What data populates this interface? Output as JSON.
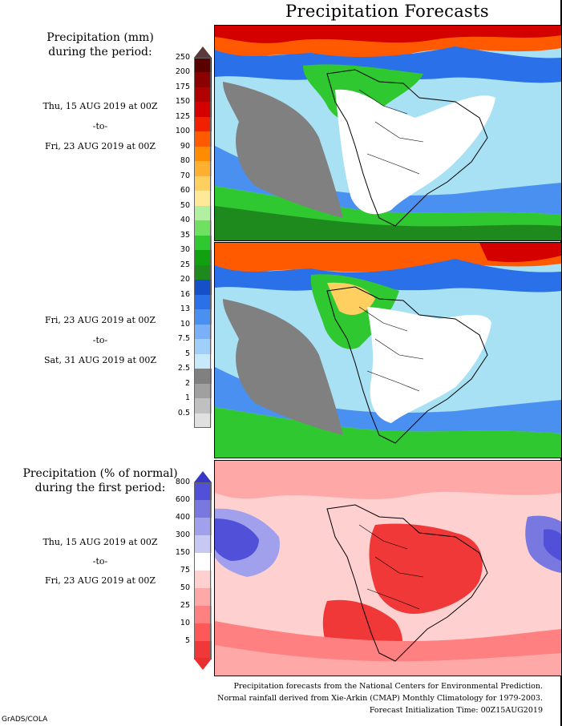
{
  "title": "Precipitation Forecasts",
  "panel1": {
    "heading_line1": "Precipitation (mm)",
    "heading_line2": "during the period:",
    "start": "Thu, 15 AUG 2019 at 00Z",
    "sep": "-to-",
    "end": "Fri, 23 AUG 2019 at 00Z"
  },
  "panel2": {
    "start": "Fri, 23 AUG 2019 at 00Z",
    "sep": "-to-",
    "end": "Sat, 31 AUG 2019 at 00Z"
  },
  "panel3": {
    "heading_line1": "Precipitation (% of normal)",
    "heading_line2": "during the first period:",
    "start": "Thu, 15 AUG 2019 at 00Z",
    "sep": "-to-",
    "end": "Fri, 23 AUG 2019 at 00Z"
  },
  "legend_mm": {
    "labels": [
      "250",
      "200",
      "175",
      "150",
      "125",
      "100",
      "90",
      "80",
      "70",
      "60",
      "50",
      "40",
      "35",
      "30",
      "25",
      "20",
      "16",
      "13",
      "10",
      "7.5",
      "5",
      "2.5",
      "2",
      "1",
      "0.5"
    ],
    "colors": [
      "#5a0000",
      "#8b0000",
      "#b00000",
      "#d40000",
      "#f02000",
      "#ff5a00",
      "#ff8c00",
      "#ffb030",
      "#ffd060",
      "#ffe898",
      "#b0f0a0",
      "#70e060",
      "#30c830",
      "#10a010",
      "#1e8a1e",
      "#1550c8",
      "#2a70e8",
      "#4a90f0",
      "#7ab0f8",
      "#a0d0fa",
      "#c8e8fc",
      "#808080",
      "#a0a0a0",
      "#c0c0c0",
      "#e0e0e0"
    ],
    "top_color": "#5a3a3a",
    "bottom_color": "#ffffff"
  },
  "legend_pct": {
    "labels": [
      "800",
      "600",
      "400",
      "300",
      "150",
      "75",
      "50",
      "25",
      "10",
      "5"
    ],
    "colors": [
      "#5050d8",
      "#7878e0",
      "#a0a0ec",
      "#c8c8f4",
      "#ffffff",
      "#ffd0d0",
      "#ffa8a8",
      "#ff8080",
      "#ff5858",
      "#f03838"
    ],
    "top_color": "#3838c8",
    "bottom_color": "#e83030"
  },
  "footer": {
    "line1": "Precipitation forecasts from the National Centers for Environmental Prediction.",
    "line2": "Normal rainfall derived from Xie-Arkin (CMAP) Monthly Climatology for 1979-2003.",
    "line3": "Forecast Initialization Time: 00Z15AUG2019"
  },
  "credit": "GrADS/COLA"
}
